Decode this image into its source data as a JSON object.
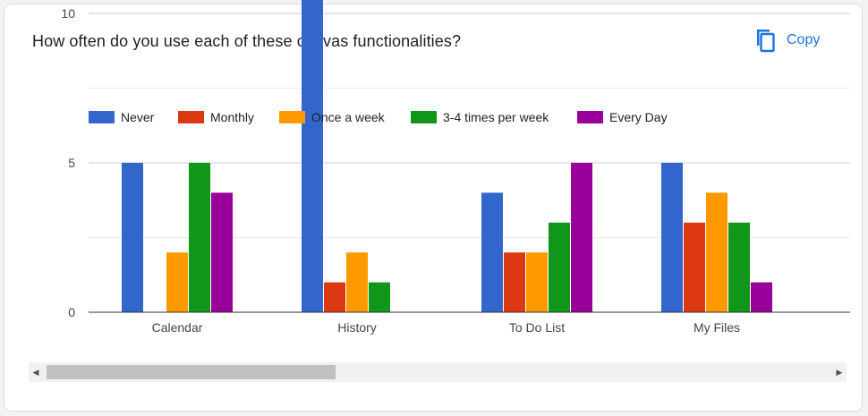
{
  "question": "How often do you use each of these canvas functionalities?",
  "copy_label": "Copy",
  "icons": {
    "copy": "copy-icon",
    "scroll_left": "scroll-left-arrow-icon",
    "scroll_right": "scroll-right-arrow-icon"
  },
  "chart_data": {
    "type": "bar",
    "categories": [
      "Calendar",
      "History",
      "To Do List",
      "My Files"
    ],
    "series": [
      {
        "name": "Never",
        "color": "#3366cc",
        "values": [
          5,
          12,
          4,
          5
        ]
      },
      {
        "name": "Monthly",
        "color": "#dc3912",
        "values": [
          0,
          1,
          2,
          3
        ]
      },
      {
        "name": "Once a week",
        "color": "#ff9900",
        "values": [
          2,
          2,
          2,
          4
        ]
      },
      {
        "name": "3-4 times per week",
        "color": "#109618",
        "values": [
          5,
          1,
          3,
          3
        ]
      },
      {
        "name": "Every Day",
        "color": "#990099",
        "values": [
          4,
          0,
          5,
          1
        ]
      }
    ],
    "yticks": [
      0,
      5,
      10
    ],
    "ylim": [
      0,
      12.5
    ],
    "grid": true,
    "legend_position": "top",
    "scrollable": true
  }
}
